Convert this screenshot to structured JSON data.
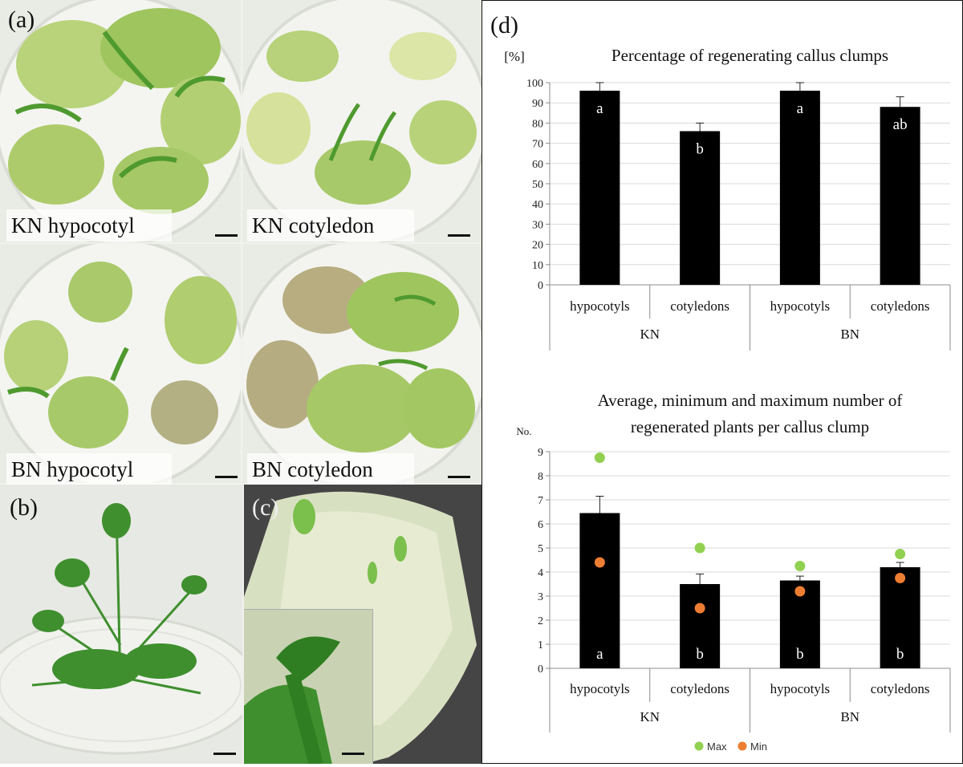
{
  "panels": {
    "a": {
      "label": "(a)",
      "captions": [
        "KN hypocotyl",
        "KN cotyledon",
        "BN hypocotyl",
        "BN cotyledon"
      ]
    },
    "b": {
      "label": "(b)"
    },
    "c": {
      "label": "(c)"
    },
    "d": {
      "label": "(d)"
    }
  },
  "colors": {
    "bar": "#000000",
    "max": "#92d050",
    "min": "#ed7d31",
    "grid": "#d9d9d9",
    "callus_green": "#a7c96a",
    "shoot_green": "#3f8f2e",
    "dark_photo": "#3a3a3a"
  },
  "chart_data": [
    {
      "type": "bar",
      "title": "Percentage of regenerating callus clumps",
      "ylabel": "[%]",
      "ylim": [
        0,
        100
      ],
      "yticks": [
        0,
        10,
        20,
        30,
        40,
        50,
        60,
        70,
        80,
        90,
        100
      ],
      "grid": true,
      "categories": [
        "hypocotyls",
        "cotyledons",
        "hypocotyls",
        "cotyledons"
      ],
      "groups": [
        "KN",
        "BN"
      ],
      "values": [
        96,
        76,
        96,
        88
      ],
      "errors": [
        4,
        4,
        4,
        5
      ],
      "letters": [
        "a",
        "b",
        "a",
        "ab"
      ]
    },
    {
      "type": "bar",
      "title_lines": [
        "Average, minimum and maximum number of",
        "regenerated plants per callus clump"
      ],
      "ylabel": "No.",
      "ylim": [
        0,
        9
      ],
      "yticks": [
        0,
        1,
        2,
        3,
        4,
        5,
        6,
        7,
        8,
        9
      ],
      "grid": true,
      "categories": [
        "hypocotyls",
        "cotyledons",
        "hypocotyls",
        "cotyledons"
      ],
      "groups": [
        "KN",
        "BN"
      ],
      "values": [
        6.45,
        3.5,
        3.65,
        4.2
      ],
      "errors": [
        0.7,
        0.42,
        0.18,
        0.2
      ],
      "max": [
        8.75,
        5.0,
        4.25,
        4.75
      ],
      "min": [
        4.4,
        2.5,
        3.2,
        3.75
      ],
      "letters": [
        "a",
        "b",
        "b",
        "b"
      ],
      "legend": [
        "Max",
        "Min"
      ],
      "legend_position": "bottom"
    }
  ]
}
